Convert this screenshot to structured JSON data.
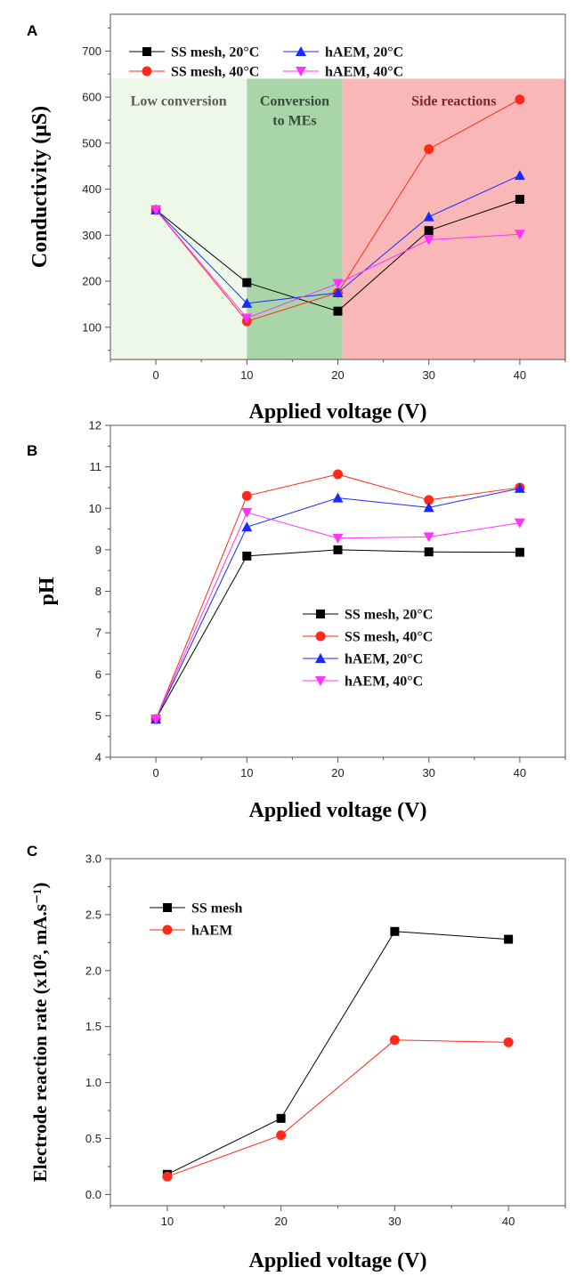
{
  "chart_data": [
    {
      "panel": "A",
      "type": "line",
      "xlabel": "Applied voltage (V)",
      "ylabel": "Conductivity (μS)",
      "xlim": [
        -5,
        45
      ],
      "ylim": [
        30,
        780
      ],
      "xticks": [
        0,
        10,
        20,
        30,
        40
      ],
      "yticks": [
        100,
        200,
        300,
        400,
        500,
        600,
        700
      ],
      "legend_placement": "top-left",
      "regions": [
        {
          "label": "Low conversion",
          "x0": -5,
          "x1": 10,
          "color": "#eef8e8",
          "text_color": "#5a5a5a"
        },
        {
          "label": "Conversion\nto MEs",
          "x0": 10,
          "x1": 20.5,
          "color": "#a8d6a8",
          "text_color": "#3a4a3a"
        },
        {
          "label": "Side reactions",
          "x0": 20.5,
          "x1": 45,
          "color": "#f9b7b7",
          "text_color": "#7a2a2a"
        }
      ],
      "x": [
        0,
        10,
        20,
        30,
        40
      ],
      "series": [
        {
          "name": "SS mesh, 20°C",
          "marker": "square",
          "color": "#000000",
          "values": [
            355,
            197,
            135,
            310,
            378
          ]
        },
        {
          "name": "SS mesh, 40°C",
          "marker": "circle",
          "color": "#ff2a1a",
          "values": [
            355,
            113,
            175,
            487,
            595
          ]
        },
        {
          "name": "hAEM, 20°C",
          "marker": "triangle-up",
          "color": "#1a2aff",
          "values": [
            355,
            152,
            175,
            340,
            430
          ]
        },
        {
          "name": "hAEM, 40°C",
          "marker": "triangle-down",
          "color": "#ff33ff",
          "values": [
            355,
            120,
            195,
            290,
            302
          ]
        }
      ]
    },
    {
      "panel": "B",
      "type": "line",
      "xlabel": "Applied voltage (V)",
      "ylabel": "pH",
      "xlim": [
        -5,
        45
      ],
      "ylim": [
        4,
        12
      ],
      "xticks": [
        0,
        10,
        20,
        30,
        40
      ],
      "yticks": [
        4,
        5,
        6,
        7,
        8,
        9,
        10,
        11,
        12
      ],
      "legend_placement": "center-right",
      "x": [
        0,
        10,
        20,
        30,
        40
      ],
      "series": [
        {
          "name": "SS mesh, 20°C",
          "marker": "square",
          "color": "#000000",
          "values": [
            4.92,
            8.85,
            9.0,
            8.95,
            8.94
          ]
        },
        {
          "name": "SS mesh, 40°C",
          "marker": "circle",
          "color": "#ff2a1a",
          "values": [
            4.92,
            10.3,
            10.82,
            10.2,
            10.5
          ]
        },
        {
          "name": "hAEM, 20°C",
          "marker": "triangle-up",
          "color": "#1a2aff",
          "values": [
            4.92,
            9.55,
            10.25,
            10.02,
            10.48
          ]
        },
        {
          "name": "hAEM, 40°C",
          "marker": "triangle-down",
          "color": "#ff33ff",
          "values": [
            4.92,
            9.9,
            9.28,
            9.31,
            9.65
          ]
        }
      ]
    },
    {
      "panel": "C",
      "type": "line",
      "xlabel": "Applied voltage (V)",
      "ylabel": "Electrode reaction rate (x10², mA.s⁻¹)",
      "xlim": [
        5,
        45
      ],
      "ylim": [
        -0.1,
        3.0
      ],
      "xticks": [
        10,
        20,
        30,
        40
      ],
      "yticks": [
        0.0,
        0.5,
        1.0,
        1.5,
        2.0,
        2.5,
        3.0
      ],
      "tick_format": 1,
      "legend_placement": "top-left",
      "x": [
        10,
        20,
        30,
        40
      ],
      "series": [
        {
          "name": "SS mesh",
          "marker": "square",
          "color": "#000000",
          "values": [
            0.18,
            0.68,
            2.35,
            2.28
          ]
        },
        {
          "name": "hAEM",
          "marker": "circle",
          "color": "#ff2a1a",
          "values": [
            0.16,
            0.53,
            1.38,
            1.36
          ]
        }
      ]
    }
  ]
}
